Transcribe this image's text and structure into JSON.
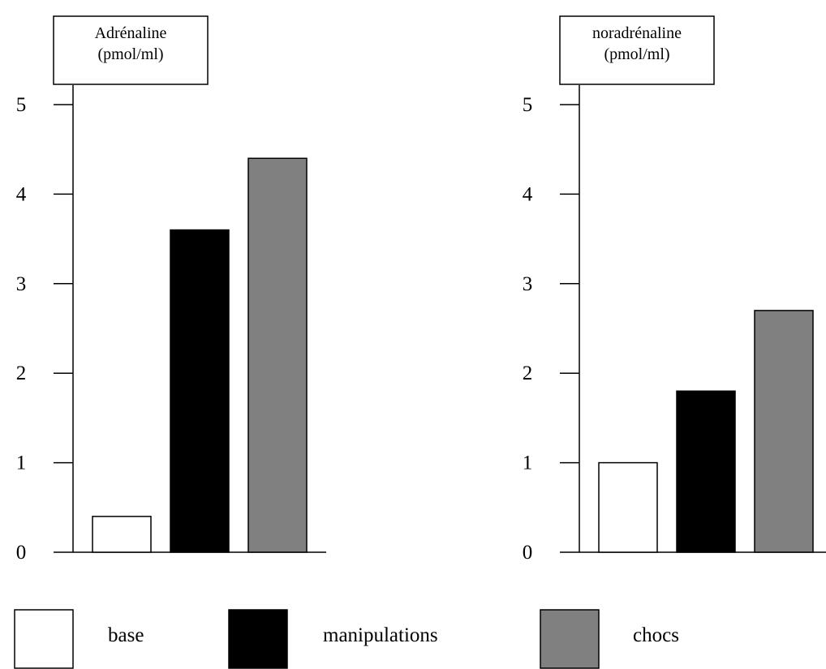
{
  "chart_data": [
    {
      "type": "bar",
      "title": "Adrénaline\n(pmol/ml)",
      "categories": [
        "base",
        "manipulations",
        "chocs"
      ],
      "values": [
        0.4,
        3.6,
        4.4
      ],
      "ylim": [
        0,
        5
      ],
      "yticks": [
        "0",
        "1",
        "2",
        "3",
        "4",
        "5"
      ],
      "grid": false
    },
    {
      "type": "bar",
      "title": "noradrénaline\n(pmol/ml)",
      "categories": [
        "base",
        "manipulations",
        "chocs"
      ],
      "values": [
        1.0,
        1.8,
        2.7
      ],
      "ylim": [
        0,
        5
      ],
      "yticks": [
        "0",
        "1",
        "2",
        "3",
        "4",
        "5"
      ],
      "grid": false
    }
  ],
  "legend": {
    "placement": "bottom",
    "items": [
      {
        "label": "base",
        "color": "#ffffff"
      },
      {
        "label": "manipulations",
        "color": "#000000"
      },
      {
        "label": "chocs",
        "color": "#808080"
      }
    ]
  }
}
